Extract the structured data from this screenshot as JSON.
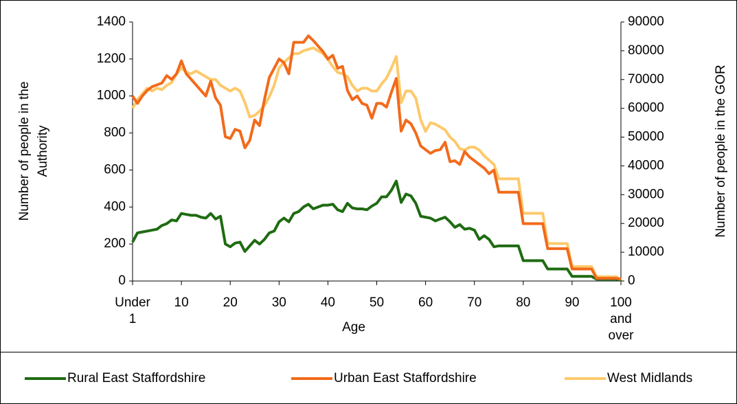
{
  "chart_data": {
    "type": "line",
    "x_label": "Age",
    "y_label": "Number of people in the Authority",
    "y2_label": "Number of people in the GOR",
    "categories": [
      "Under 1",
      null,
      null,
      null,
      null,
      null,
      null,
      null,
      null,
      null,
      "10",
      null,
      null,
      null,
      null,
      null,
      null,
      null,
      null,
      null,
      "20",
      null,
      null,
      null,
      null,
      null,
      null,
      null,
      null,
      null,
      "30",
      null,
      null,
      null,
      null,
      null,
      null,
      null,
      null,
      null,
      "40",
      null,
      null,
      null,
      null,
      null,
      null,
      null,
      null,
      null,
      "50",
      null,
      null,
      null,
      null,
      null,
      null,
      null,
      null,
      null,
      "60",
      null,
      null,
      null,
      null,
      null,
      null,
      null,
      null,
      null,
      "70",
      null,
      null,
      null,
      null,
      null,
      null,
      null,
      null,
      null,
      "80",
      null,
      null,
      null,
      null,
      null,
      null,
      null,
      null,
      null,
      "90",
      null,
      null,
      null,
      null,
      null,
      null,
      null,
      null,
      null,
      "100 and over"
    ],
    "ylim": [
      0,
      1400
    ],
    "yticks": [
      0,
      200,
      400,
      600,
      800,
      1000,
      1200,
      1400
    ],
    "y2lim": [
      0,
      90000
    ],
    "y2ticks": [
      0,
      10000,
      20000,
      30000,
      40000,
      50000,
      60000,
      70000,
      80000,
      90000
    ],
    "legend": "bottom",
    "series": [
      {
        "name": "Rural East Staffordshire",
        "color": "#1f6b12",
        "values": [
          210,
          260,
          265,
          270,
          275,
          280,
          300,
          310,
          330,
          325,
          365,
          360,
          355,
          355,
          345,
          340,
          365,
          335,
          350,
          200,
          185,
          205,
          210,
          160,
          190,
          220,
          200,
          225,
          260,
          270,
          320,
          340,
          320,
          365,
          375,
          400,
          415,
          390,
          400,
          410,
          410,
          415,
          385,
          375,
          420,
          395,
          390,
          390,
          385,
          405,
          420,
          455,
          455,
          490,
          540,
          425,
          470,
          460,
          420,
          350,
          345,
          340,
          325,
          335,
          345,
          320,
          290,
          305,
          280,
          285,
          275,
          225,
          245,
          225,
          185,
          190,
          190,
          190,
          190,
          190,
          110,
          110,
          110,
          110,
          110,
          65,
          65,
          65,
          65,
          65,
          25,
          25,
          25,
          25,
          25,
          10,
          10,
          10,
          10,
          10,
          5
        ]
      },
      {
        "name": "Urban East Staffordshire",
        "color": "#f26a1b",
        "values": [
          1000,
          960,
          1000,
          1030,
          1050,
          1060,
          1070,
          1110,
          1090,
          1120,
          1190,
          1120,
          1090,
          1060,
          1030,
          1000,
          1080,
          990,
          950,
          780,
          770,
          820,
          810,
          720,
          760,
          870,
          840,
          980,
          1100,
          1150,
          1200,
          1180,
          1120,
          1290,
          1290,
          1290,
          1325,
          1300,
          1270,
          1240,
          1200,
          1220,
          1150,
          1160,
          1030,
          980,
          1000,
          960,
          950,
          880,
          960,
          960,
          940,
          1020,
          1095,
          810,
          870,
          850,
          800,
          730,
          710,
          690,
          705,
          710,
          750,
          645,
          650,
          630,
          700,
          670,
          650,
          630,
          610,
          580,
          600,
          480,
          480,
          480,
          480,
          480,
          310,
          310,
          310,
          310,
          310,
          175,
          175,
          175,
          175,
          175,
          65,
          65,
          65,
          65,
          65,
          15,
          15,
          15,
          15,
          15,
          10
        ]
      },
      {
        "name": "West Midlands",
        "color": "#fdc96b",
        "axis": "y2",
        "values": [
          60000,
          63000,
          65000,
          67000,
          66000,
          67000,
          66500,
          68000,
          69000,
          72000,
          74000,
          72500,
          72000,
          73000,
          72000,
          71000,
          70000,
          70000,
          68000,
          67000,
          66000,
          67000,
          66000,
          62000,
          57000,
          57500,
          59000,
          61000,
          64000,
          68000,
          74000,
          76000,
          77500,
          79000,
          79000,
          80000,
          80500,
          81000,
          80000,
          79000,
          77000,
          74500,
          72500,
          72000,
          71000,
          68000,
          66000,
          67000,
          67000,
          66000,
          66000,
          68500,
          70500,
          74000,
          78000,
          62000,
          66000,
          66000,
          63500,
          56000,
          52000,
          55000,
          54500,
          53500,
          52500,
          50000,
          48500,
          46000,
          45500,
          46500,
          46500,
          45500,
          43500,
          42000,
          40500,
          35500,
          35500,
          35500,
          35500,
          35500,
          23500,
          23500,
          23500,
          23500,
          23500,
          13000,
          13000,
          13000,
          13000,
          13000,
          5000,
          5000,
          5000,
          5000,
          5000,
          1500,
          1500,
          1500,
          1500,
          1500,
          500
        ]
      }
    ]
  }
}
